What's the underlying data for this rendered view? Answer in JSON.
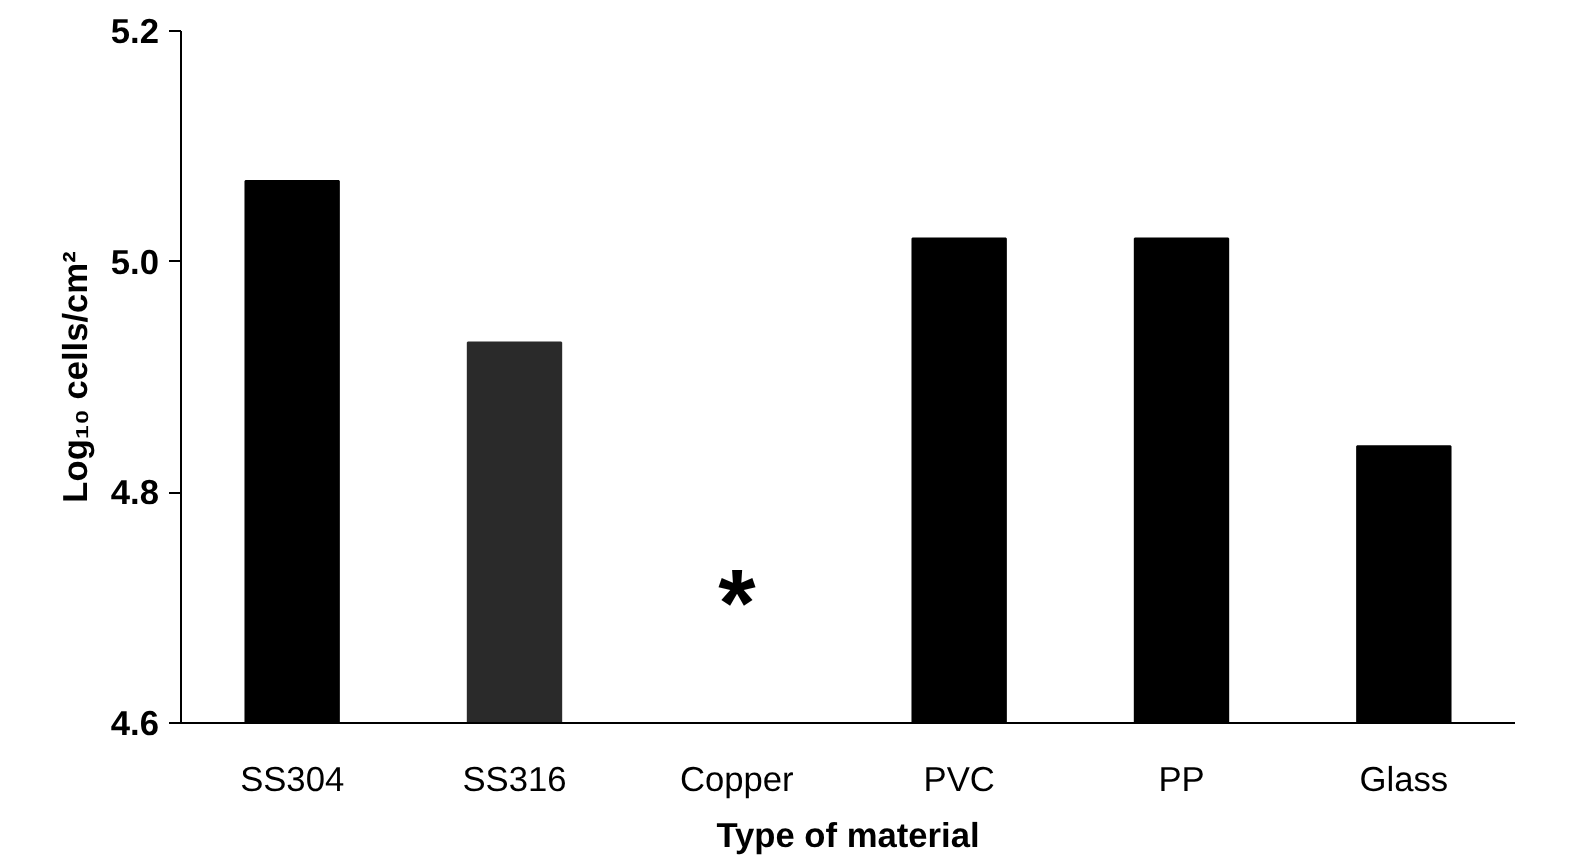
{
  "chart_data": {
    "type": "bar",
    "xlabel": "Type of material",
    "ylabel": "Log₁₀ cells/cm²",
    "categories": [
      "SS304",
      "SS316",
      "Copper",
      "PVC",
      "PP",
      "Glass"
    ],
    "values": [
      5.07,
      4.93,
      null,
      5.02,
      5.02,
      4.84
    ],
    "colors": [
      "#000000",
      "#2a2a2a",
      "#000000",
      "#000000",
      "#000000",
      "#000000"
    ],
    "ylim": [
      4.6,
      5.2
    ],
    "yticks": [
      {
        "value": 4.6,
        "label": "4.6"
      },
      {
        "value": 4.8,
        "label": "4.8"
      },
      {
        "value": 5.0,
        "label": "5.0"
      },
      {
        "value": 5.2,
        "label": "5.2"
      }
    ],
    "annotations": [
      "*"
    ],
    "grid": false
  }
}
